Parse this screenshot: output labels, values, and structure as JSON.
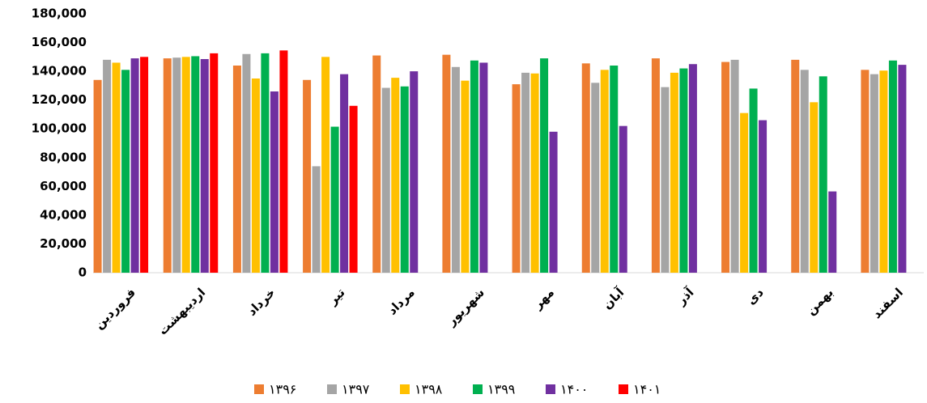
{
  "chart_data": {
    "type": "bar",
    "categories": [
      "فروردین",
      "اردیبهشت",
      "خرداد",
      "تیر",
      "مرداد",
      "شهریور",
      "مهر",
      "آبان",
      "آذر",
      "دی",
      "بهمن",
      "اسفند"
    ],
    "series": [
      {
        "name": "۱۳۹۶",
        "color": "#ED7D31",
        "values": [
          134000,
          149000,
          144000,
          134000,
          151000,
          151500,
          131000,
          145500,
          149000,
          146500,
          148000,
          141000
        ]
      },
      {
        "name": "۱۳۹۷",
        "color": "#A5A5A5",
        "values": [
          148000,
          149500,
          152000,
          74000,
          128500,
          143000,
          139000,
          132000,
          129000,
          148000,
          141000,
          138000
        ]
      },
      {
        "name": "۱۳۹۸",
        "color": "#FFC000",
        "values": [
          146000,
          150000,
          135000,
          150000,
          135500,
          133500,
          138500,
          141000,
          139000,
          111000,
          118500,
          140500
        ]
      },
      {
        "name": "۱۳۹۹",
        "color": "#00B050",
        "values": [
          141000,
          150500,
          152500,
          101500,
          129500,
          147500,
          149000,
          144000,
          142000,
          128000,
          136500,
          147500
        ]
      },
      {
        "name": "۱۴۰۰",
        "color": "#7030A0",
        "values": [
          149000,
          148500,
          126000,
          138000,
          140000,
          146000,
          98000,
          102000,
          145000,
          106000,
          56500,
          144500
        ]
      },
      {
        "name": "۱۴۰۱",
        "color": "#FF0000",
        "values": [
          150000,
          152500,
          154500,
          116000,
          null,
          null,
          null,
          null,
          null,
          null,
          null,
          null
        ]
      }
    ],
    "ylim": [
      0,
      180000
    ],
    "yticks": [
      0,
      {
        "value": 20000,
        "label": "20,000"
      },
      {
        "value": 40000,
        "label": "40,000"
      },
      {
        "value": 60000,
        "label": "60,000"
      },
      {
        "value": 80000,
        "label": "80,000"
      },
      {
        "value": 100000,
        "label": "100,000"
      },
      {
        "value": 120000,
        "label": "120,000"
      },
      {
        "value": 140000,
        "label": "140,000"
      },
      {
        "value": 160000,
        "label": "160,000"
      },
      {
        "value": 180000,
        "label": "180,000"
      }
    ],
    "grid": false
  }
}
